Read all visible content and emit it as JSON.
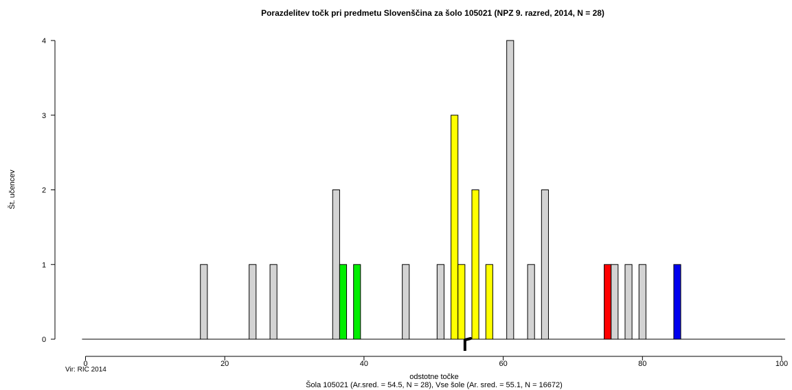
{
  "chart_data": {
    "type": "bar",
    "title": "Porazdelitev točk pri predmetu Slovenščina za šolo 105021 (NPZ 9. razred, 2014, N = 28)",
    "xlabel": "odstotne točke",
    "ylabel": "Št. učencev",
    "subtitle": "Šola 105021 (Ar.sred. = 54.5, N = 28), Vse šole (Ar. sred. = 55.1, N = 16672)",
    "source": "Vir: RIC 2014",
    "xlim": [
      0,
      100
    ],
    "ylim": [
      0,
      4
    ],
    "x_ticks": [
      0,
      20,
      40,
      60,
      80,
      100
    ],
    "y_ticks": [
      0,
      1,
      2,
      3,
      4
    ],
    "bar_width": 1,
    "baseline_range": [
      -0.5,
      100.5
    ],
    "bars": [
      {
        "x": 17,
        "value": 1,
        "color": "#d3d3d3"
      },
      {
        "x": 24,
        "value": 1,
        "color": "#d3d3d3"
      },
      {
        "x": 27,
        "value": 1,
        "color": "#d3d3d3"
      },
      {
        "x": 36,
        "value": 2,
        "color": "#d3d3d3"
      },
      {
        "x": 37,
        "value": 1,
        "color": "#00ee00"
      },
      {
        "x": 39,
        "value": 1,
        "color": "#00ee00"
      },
      {
        "x": 46,
        "value": 1,
        "color": "#d3d3d3"
      },
      {
        "x": 51,
        "value": 1,
        "color": "#d3d3d3"
      },
      {
        "x": 53,
        "value": 3,
        "color": "#ffff00"
      },
      {
        "x": 54,
        "value": 1,
        "color": "#ffff00"
      },
      {
        "x": 56,
        "value": 2,
        "color": "#ffff00"
      },
      {
        "x": 58,
        "value": 1,
        "color": "#ffff00"
      },
      {
        "x": 61,
        "value": 4,
        "color": "#d3d3d3"
      },
      {
        "x": 64,
        "value": 1,
        "color": "#d3d3d3"
      },
      {
        "x": 66,
        "value": 2,
        "color": "#d3d3d3"
      },
      {
        "x": 75,
        "value": 1,
        "color": "#ff0000"
      },
      {
        "x": 76,
        "value": 1,
        "color": "#d3d3d3"
      },
      {
        "x": 78,
        "value": 1,
        "color": "#d3d3d3"
      },
      {
        "x": 80,
        "value": 1,
        "color": "#d3d3d3"
      },
      {
        "x": 85,
        "value": 1,
        "color": "#0000ee"
      }
    ],
    "mean_markers": {
      "school_mean": 54.5,
      "all_schools_mean": 55.1
    }
  }
}
